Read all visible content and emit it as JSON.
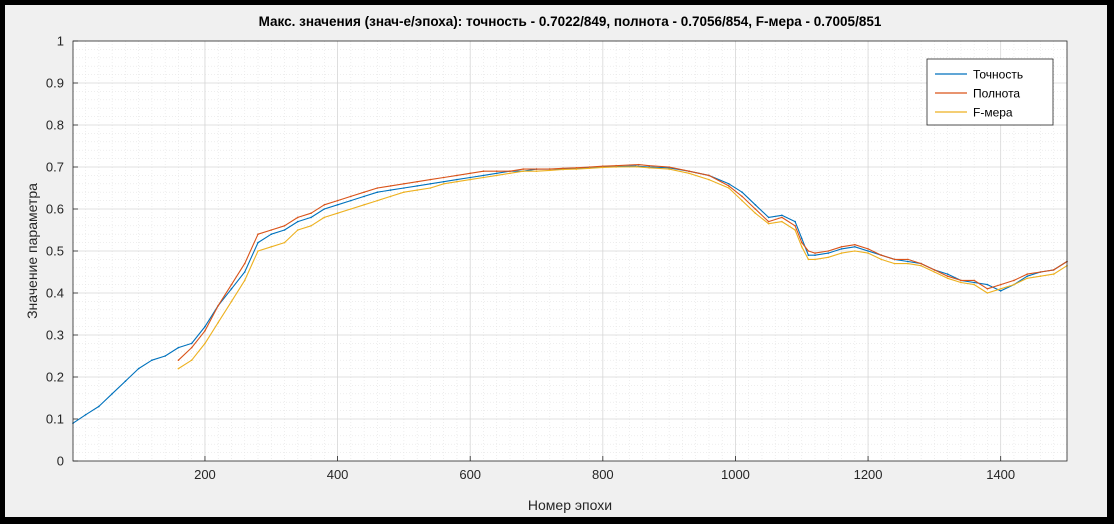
{
  "chart_data": {
    "type": "line",
    "title": "Макс. значения (знач-е/эпоха): точность - 0.7022/849, полнота - 0.7056/854, F-мера - 0.7005/851",
    "xlabel": "Номер эпохи",
    "ylabel": "Значение параметра",
    "xlim": [
      1,
      1500
    ],
    "ylim": [
      0,
      1
    ],
    "xticks": [
      200,
      400,
      600,
      800,
      1000,
      1200,
      1400
    ],
    "yticks": [
      0,
      0.1,
      0.2,
      0.3,
      0.4,
      0.5,
      0.6,
      0.7,
      0.8,
      0.9,
      1
    ],
    "grid": true,
    "minor_grid": true,
    "legend_position": "top-right",
    "series": [
      {
        "name": "Точность",
        "color": "#0072bd",
        "x": [
          1,
          20,
          40,
          60,
          80,
          100,
          120,
          140,
          160,
          180,
          200,
          220,
          240,
          260,
          280,
          300,
          320,
          340,
          360,
          380,
          400,
          420,
          440,
          460,
          480,
          500,
          520,
          540,
          560,
          580,
          600,
          620,
          640,
          660,
          680,
          700,
          720,
          740,
          760,
          780,
          800,
          820,
          849,
          870,
          900,
          930,
          960,
          990,
          1010,
          1030,
          1050,
          1070,
          1090,
          1100,
          1110,
          1120,
          1140,
          1160,
          1180,
          1200,
          1220,
          1240,
          1260,
          1280,
          1300,
          1320,
          1340,
          1360,
          1380,
          1400,
          1420,
          1440,
          1460,
          1480,
          1500
        ],
        "values": [
          0.09,
          0.11,
          0.13,
          0.16,
          0.19,
          0.22,
          0.24,
          0.25,
          0.27,
          0.28,
          0.32,
          0.37,
          0.41,
          0.45,
          0.52,
          0.54,
          0.55,
          0.57,
          0.58,
          0.6,
          0.61,
          0.62,
          0.63,
          0.64,
          0.645,
          0.65,
          0.655,
          0.66,
          0.665,
          0.67,
          0.675,
          0.68,
          0.685,
          0.69,
          0.69,
          0.695,
          0.695,
          0.695,
          0.697,
          0.698,
          0.7,
          0.701,
          0.7022,
          0.7,
          0.698,
          0.69,
          0.68,
          0.66,
          0.64,
          0.61,
          0.58,
          0.585,
          0.57,
          0.53,
          0.49,
          0.49,
          0.495,
          0.505,
          0.51,
          0.5,
          0.49,
          0.48,
          0.475,
          0.47,
          0.455,
          0.445,
          0.43,
          0.425,
          0.42,
          0.405,
          0.42,
          0.44,
          0.45,
          0.455,
          0.475
        ]
      },
      {
        "name": "Полнота",
        "color": "#d95319",
        "x": [
          160,
          180,
          200,
          220,
          240,
          260,
          280,
          300,
          320,
          340,
          360,
          380,
          400,
          420,
          440,
          460,
          480,
          500,
          520,
          540,
          560,
          580,
          600,
          620,
          640,
          660,
          680,
          700,
          720,
          740,
          760,
          780,
          800,
          820,
          854,
          870,
          900,
          930,
          960,
          990,
          1010,
          1030,
          1050,
          1070,
          1090,
          1100,
          1110,
          1120,
          1140,
          1160,
          1180,
          1200,
          1220,
          1240,
          1260,
          1280,
          1300,
          1320,
          1340,
          1360,
          1380,
          1400,
          1420,
          1440,
          1460,
          1480,
          1500
        ],
        "values": [
          0.24,
          0.27,
          0.31,
          0.37,
          0.42,
          0.47,
          0.54,
          0.55,
          0.56,
          0.58,
          0.59,
          0.61,
          0.62,
          0.63,
          0.64,
          0.65,
          0.655,
          0.66,
          0.665,
          0.67,
          0.675,
          0.68,
          0.685,
          0.69,
          0.69,
          0.69,
          0.695,
          0.695,
          0.695,
          0.697,
          0.698,
          0.7,
          0.702,
          0.703,
          0.7056,
          0.703,
          0.7,
          0.69,
          0.68,
          0.655,
          0.63,
          0.6,
          0.57,
          0.58,
          0.56,
          0.52,
          0.5,
          0.495,
          0.5,
          0.51,
          0.515,
          0.505,
          0.49,
          0.48,
          0.48,
          0.47,
          0.455,
          0.44,
          0.43,
          0.43,
          0.41,
          0.42,
          0.43,
          0.445,
          0.45,
          0.455,
          0.475
        ]
      },
      {
        "name": "F-мера",
        "color": "#edb120",
        "x": [
          160,
          180,
          200,
          220,
          240,
          260,
          280,
          300,
          320,
          340,
          360,
          380,
          400,
          420,
          440,
          460,
          480,
          500,
          520,
          540,
          560,
          580,
          600,
          620,
          640,
          660,
          680,
          700,
          720,
          740,
          760,
          780,
          800,
          820,
          851,
          870,
          900,
          930,
          960,
          990,
          1010,
          1030,
          1050,
          1070,
          1090,
          1100,
          1110,
          1120,
          1140,
          1160,
          1180,
          1200,
          1220,
          1240,
          1260,
          1280,
          1300,
          1320,
          1340,
          1360,
          1380,
          1400,
          1420,
          1440,
          1460,
          1480,
          1500
        ],
        "values": [
          0.22,
          0.24,
          0.28,
          0.33,
          0.38,
          0.43,
          0.5,
          0.51,
          0.52,
          0.55,
          0.56,
          0.58,
          0.59,
          0.6,
          0.61,
          0.62,
          0.63,
          0.64,
          0.645,
          0.65,
          0.66,
          0.665,
          0.67,
          0.675,
          0.68,
          0.685,
          0.69,
          0.69,
          0.692,
          0.694,
          0.695,
          0.697,
          0.699,
          0.7,
          0.7005,
          0.698,
          0.695,
          0.685,
          0.67,
          0.65,
          0.62,
          0.59,
          0.565,
          0.57,
          0.55,
          0.51,
          0.48,
          0.48,
          0.485,
          0.495,
          0.5,
          0.495,
          0.48,
          0.47,
          0.47,
          0.465,
          0.45,
          0.435,
          0.425,
          0.42,
          0.4,
          0.41,
          0.42,
          0.435,
          0.44,
          0.445,
          0.465
        ]
      }
    ]
  }
}
